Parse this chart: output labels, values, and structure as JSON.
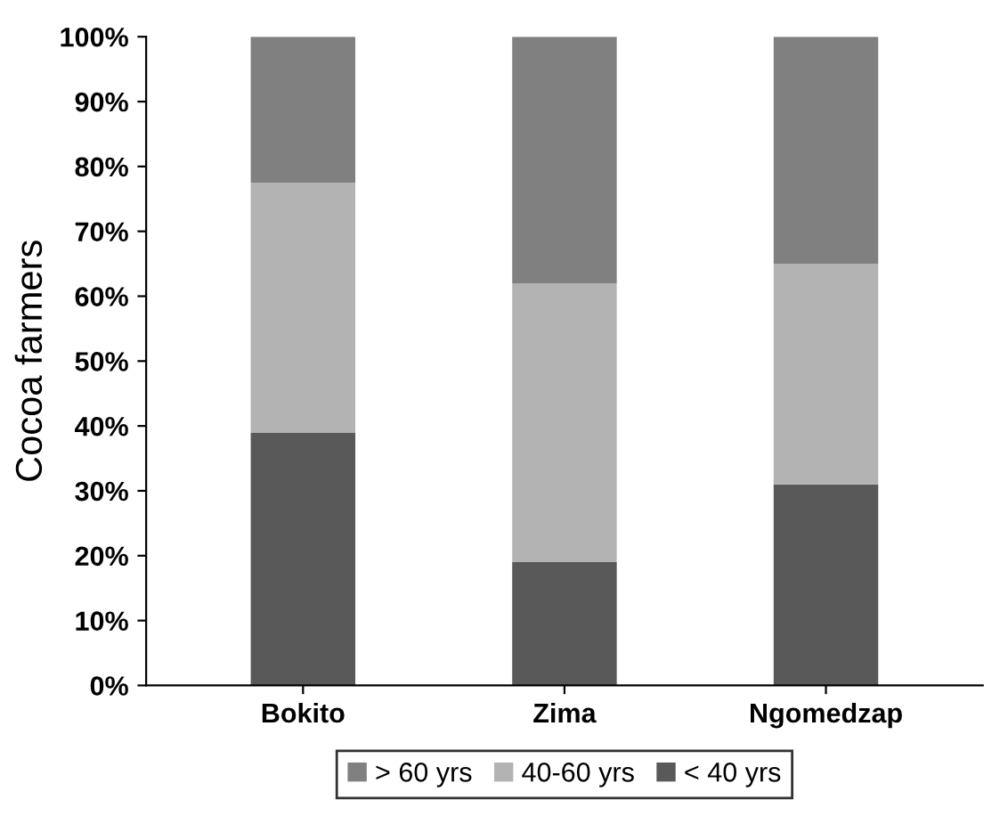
{
  "chart_data": {
    "type": "bar",
    "stacked": true,
    "ylabel": "Cocoa farmers",
    "categories": [
      "Bokito",
      "Zima",
      "Ngomedzap"
    ],
    "series": [
      {
        "name": "< 40 yrs",
        "color": "#595959",
        "values": [
          39,
          19,
          31
        ]
      },
      {
        "name": "40-60 yrs",
        "color": "#b3b3b3",
        "values": [
          38.5,
          43,
          34
        ]
      },
      {
        "name": "> 60 yrs",
        "color": "#808080",
        "values": [
          22.5,
          38,
          35
        ]
      }
    ],
    "ylim": [
      0,
      100
    ],
    "yticks": [
      {
        "value": 0,
        "label": "0%"
      },
      {
        "value": 10,
        "label": "10%"
      },
      {
        "value": 20,
        "label": "20%"
      },
      {
        "value": 30,
        "label": "30%"
      },
      {
        "value": 40,
        "label": "40%"
      },
      {
        "value": 50,
        "label": "50%"
      },
      {
        "value": 60,
        "label": "60%"
      },
      {
        "value": 70,
        "label": "70%"
      },
      {
        "value": 80,
        "label": "80%"
      },
      {
        "value": 90,
        "label": "90%"
      },
      {
        "value": 100,
        "label": "100%"
      }
    ],
    "legend": "bottom",
    "grid": false
  }
}
